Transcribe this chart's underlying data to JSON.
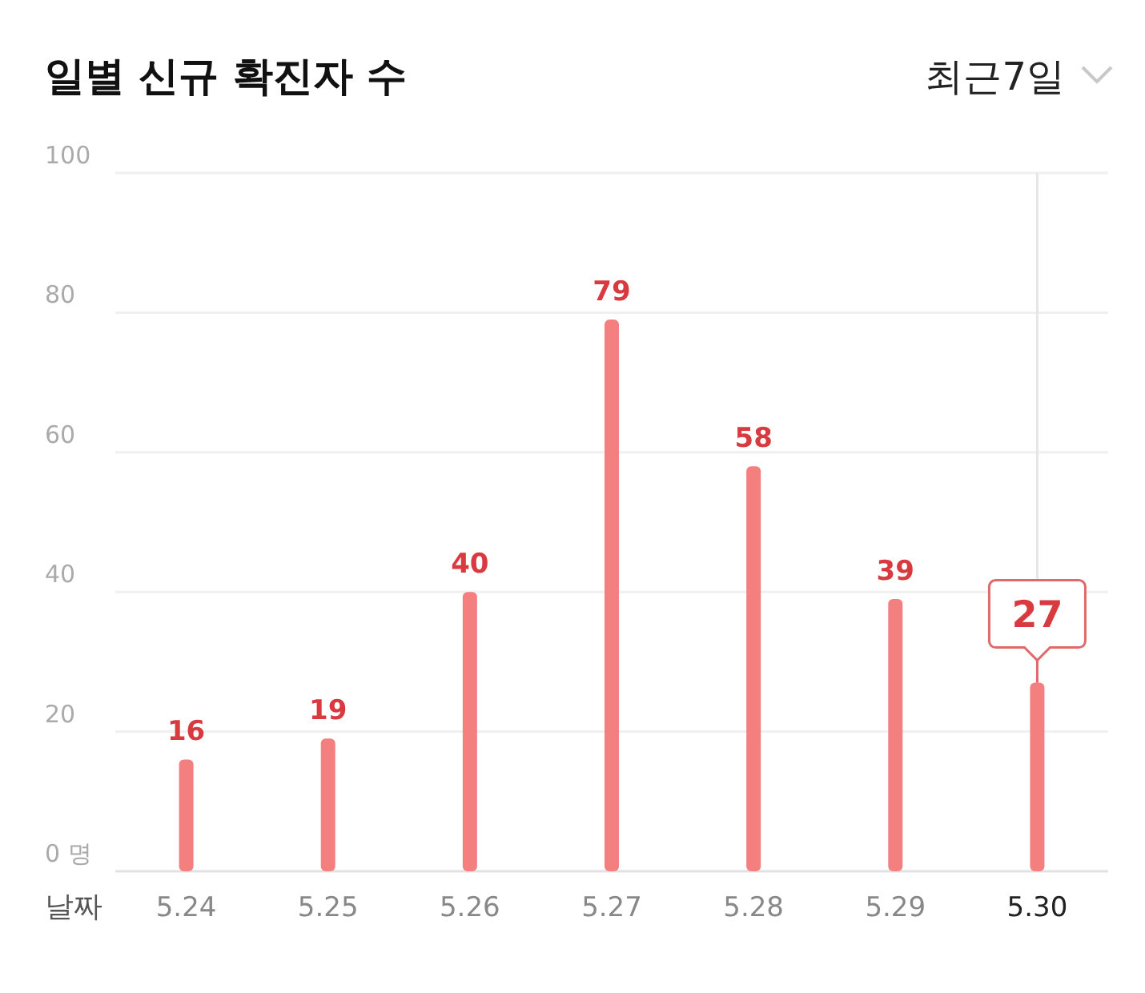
{
  "chart_data": {
    "type": "bar",
    "title": "일별 신규 확진자 수",
    "annotations": [
      "최근7일"
    ],
    "xlabel": "날짜",
    "categories": [
      "5.24",
      "5.25",
      "5.26",
      "5.27",
      "5.28",
      "5.29",
      "5.30"
    ],
    "values": [
      16,
      19,
      40,
      79,
      58,
      39,
      27
    ],
    "color": "#f47f7f",
    "ylim": [
      0,
      100
    ],
    "yticks": [
      {
        "value": 0,
        "label": "0 명"
      },
      20,
      40,
      60,
      80,
      100
    ],
    "grid": "y",
    "data_labels": true,
    "ref_lines": [
      {
        "axis": "x",
        "value": "5.30",
        "color": "#e6e6e6"
      }
    ]
  }
}
